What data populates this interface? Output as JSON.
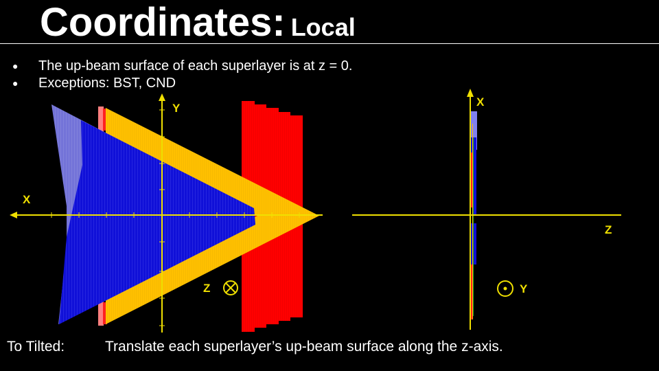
{
  "title": {
    "main": "Coordinates:",
    "sub": "Local"
  },
  "bullets": [
    {
      "text": "The up-beam surface of each superlayer is at z = 0."
    },
    {
      "text": "Exceptions: BST, CND"
    }
  ],
  "footer": {
    "lead": "To Tilted:",
    "text": "Translate each superlayer’s up-beam surface along the z-axis."
  },
  "left_view": {
    "axis_labels": {
      "y": "Y",
      "x": "X",
      "z": "Z"
    },
    "z_symbol": "into-page-cross-icon"
  },
  "right_view": {
    "axis_labels": {
      "x": "X",
      "z": "Z",
      "y": "Y"
    },
    "y_symbol": "out-of-page-dot-icon"
  },
  "colors": {
    "axis": "#f0e000",
    "red_layers": "#ff0000",
    "yellow_layer": "#ffc000",
    "blue_layer": "#1010d8",
    "light_blue": "#8080f0",
    "pink": "#ff8080"
  }
}
